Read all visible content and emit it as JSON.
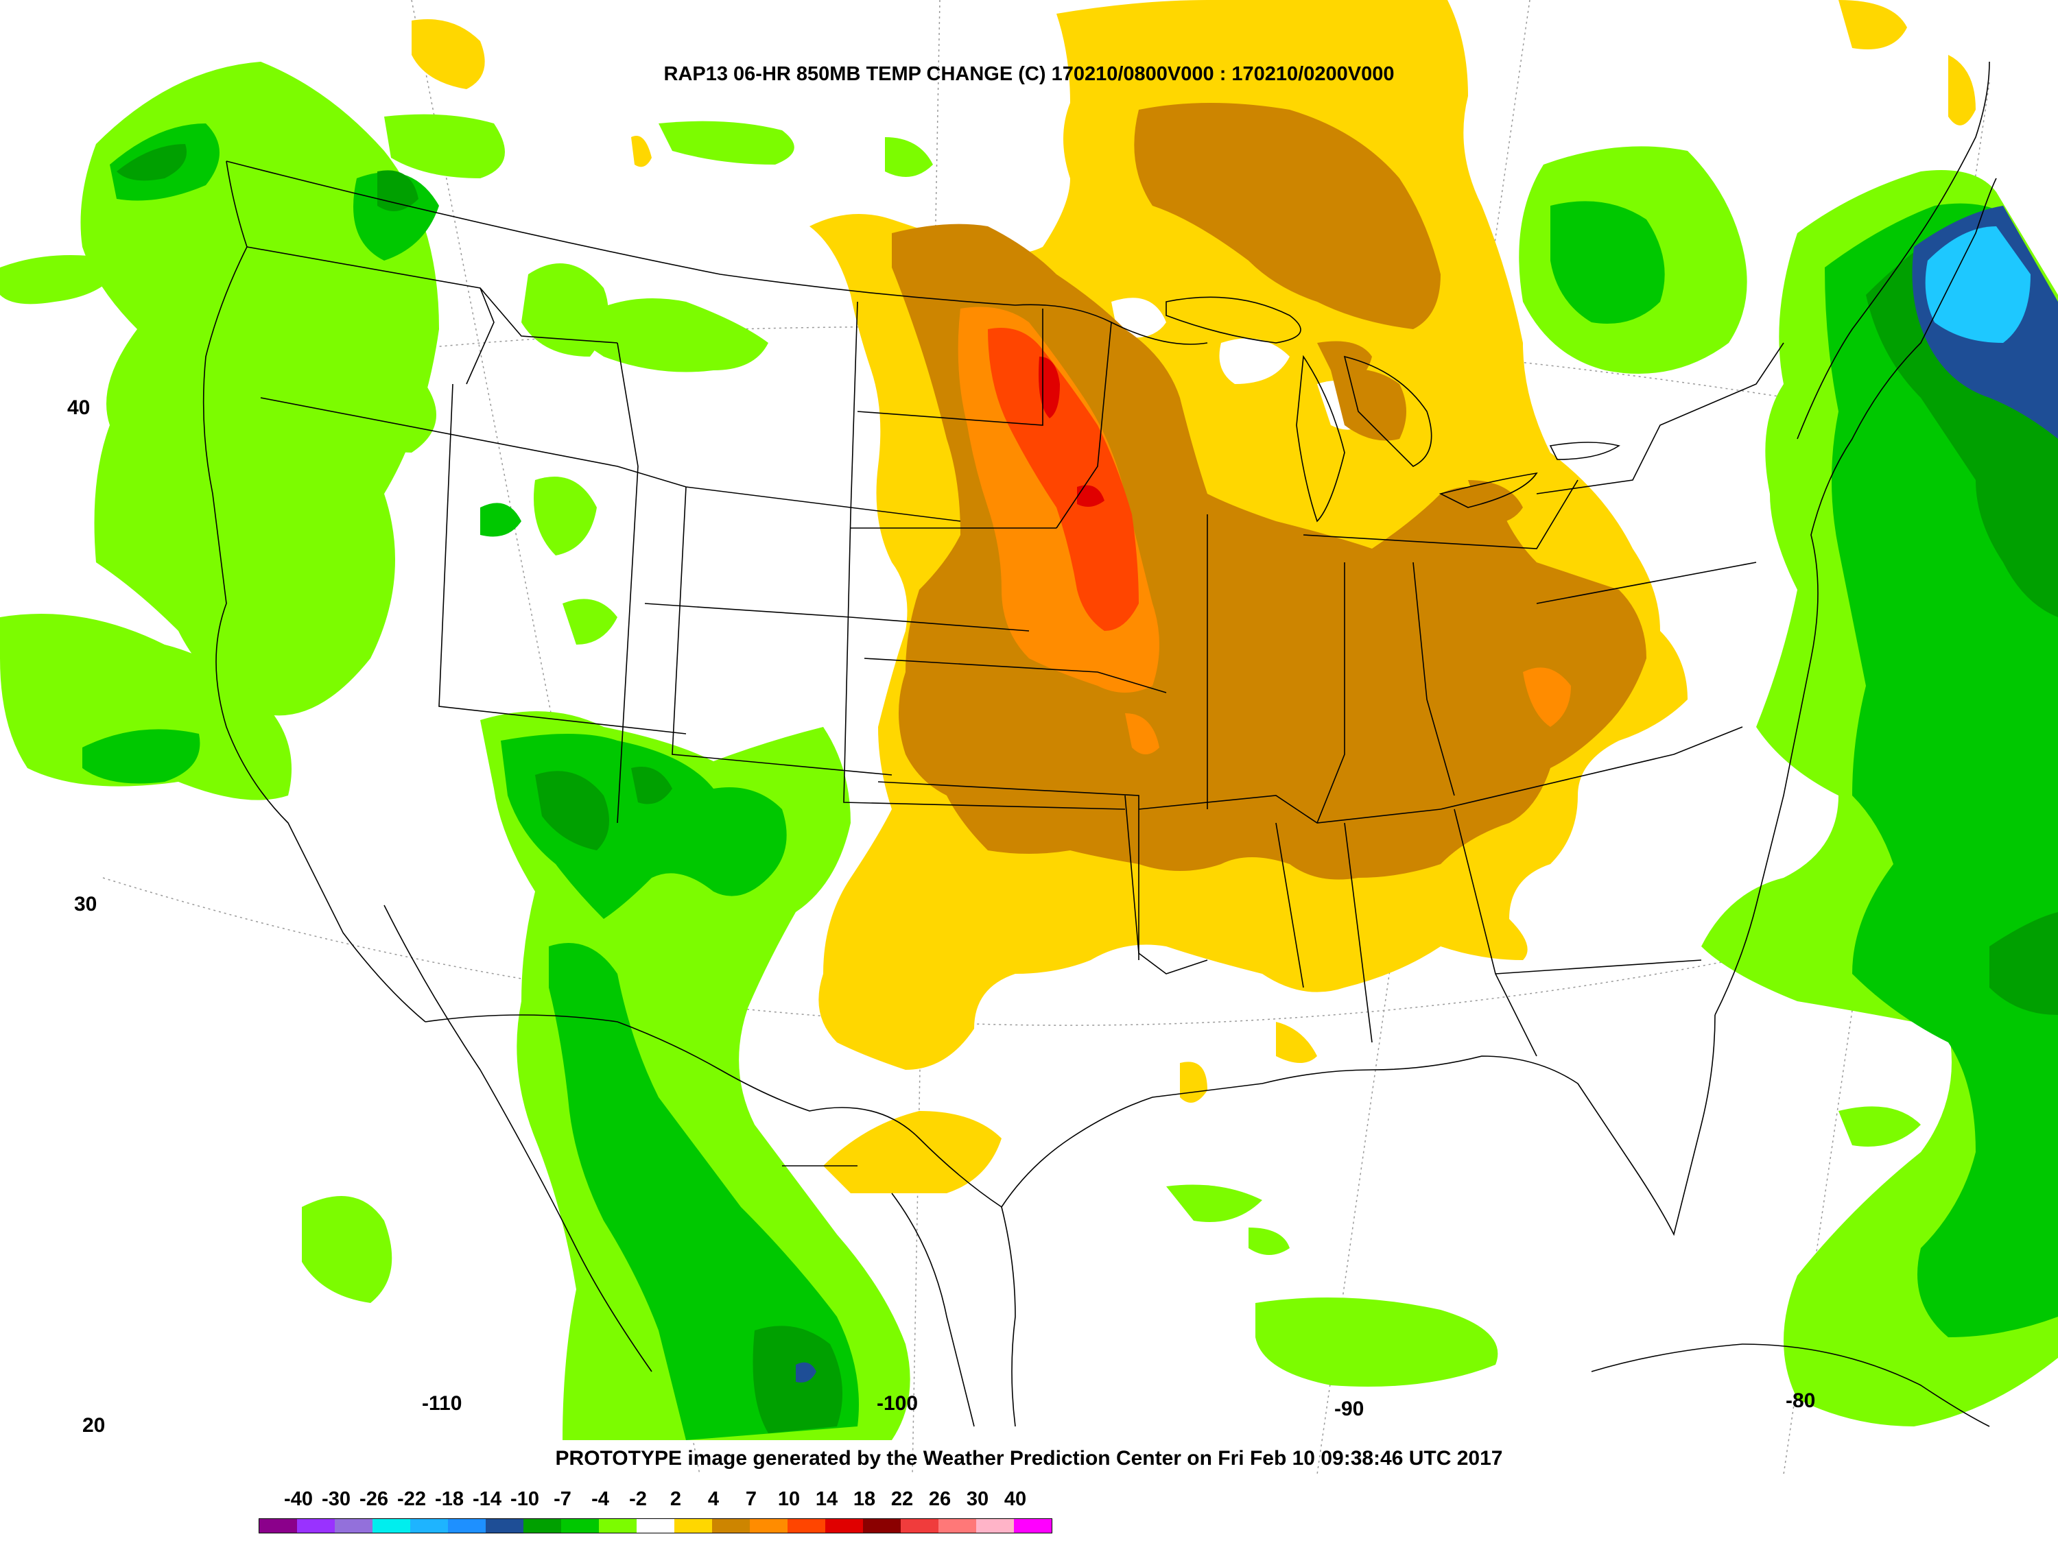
{
  "title": "RAP13 06-HR 850MB TEMP CHANGE (C) 170210/0800V000 : 170210/0200V000",
  "footer": "PROTOTYPE image generated by the Weather Prediction Center on Fri Feb 10 09:38:46 UTC 2017",
  "latitude_labels": [
    "40",
    "30",
    "20"
  ],
  "longitude_labels": [
    "-110",
    "-100",
    "-90",
    "-80"
  ],
  "legend": {
    "labels": [
      "-40",
      "-30",
      "-26",
      "-22",
      "-18",
      "-14",
      "-10",
      "-7",
      "-4",
      "-2",
      "2",
      "4",
      "7",
      "10",
      "14",
      "18",
      "22",
      "26",
      "30",
      "40"
    ],
    "colors": [
      "#8b008b",
      "#9932ff",
      "#9370db",
      "#00eeee",
      "#1eb4ff",
      "#1e90ff",
      "#1e4e96",
      "#00a000",
      "#00c800",
      "#7cfc00",
      "#ffffff",
      "#ffd700",
      "#cd8500",
      "#ff8c00",
      "#ff4500",
      "#e00000",
      "#8b0000",
      "#f03c3c",
      "#ff7878",
      "#ffb4c8",
      "#ff00ff"
    ]
  },
  "colors": {
    "land_outline": "#000000",
    "graticule": "#999999"
  }
}
